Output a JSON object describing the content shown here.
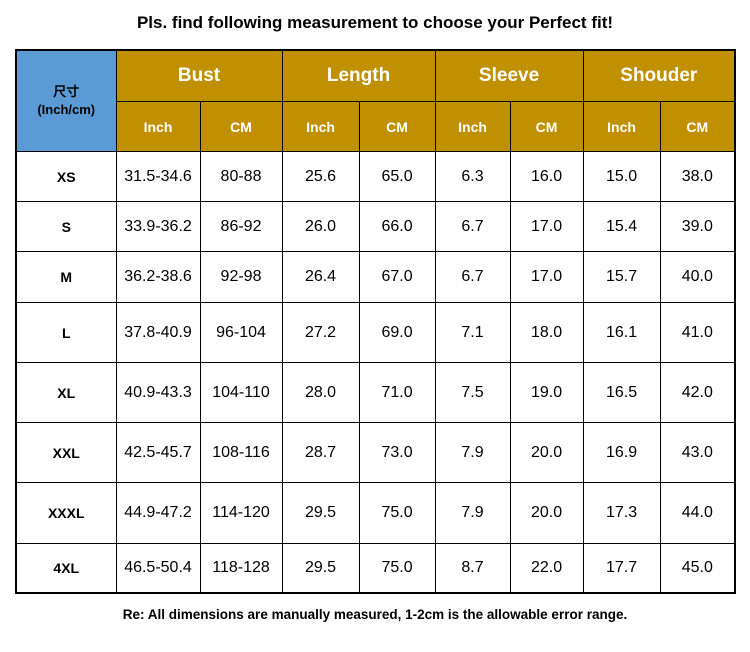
{
  "title": "Pls. find following measurement to choose your Perfect fit!",
  "table": {
    "corner_line1": "尺寸",
    "corner_line2": "(Inch/cm)",
    "groups": [
      "Bust",
      "Length",
      "Sleeve",
      "Shouder"
    ],
    "units": [
      "Inch",
      "CM",
      "Inch",
      "CM",
      "Inch",
      "CM",
      "Inch",
      "CM"
    ],
    "rows": [
      {
        "size": "XS",
        "values": [
          "31.5-34.6",
          "80-88",
          "25.6",
          "65.0",
          "6.3",
          "16.0",
          "15.0",
          "38.0"
        ]
      },
      {
        "size": "S",
        "values": [
          "33.9-36.2",
          "86-92",
          "26.0",
          "66.0",
          "6.7",
          "17.0",
          "15.4",
          "39.0"
        ]
      },
      {
        "size": "M",
        "values": [
          "36.2-38.6",
          "92-98",
          "26.4",
          "67.0",
          "6.7",
          "17.0",
          "15.7",
          "40.0"
        ]
      },
      {
        "size": "L",
        "values": [
          "37.8-40.9",
          "96-104",
          "27.2",
          "69.0",
          "7.1",
          "18.0",
          "16.1",
          "41.0"
        ]
      },
      {
        "size": "XL",
        "values": [
          "40.9-43.3",
          "104-110",
          "28.0",
          "71.0",
          "7.5",
          "19.0",
          "16.5",
          "42.0"
        ]
      },
      {
        "size": "XXL",
        "values": [
          "42.5-45.7",
          "108-116",
          "28.7",
          "73.0",
          "7.9",
          "20.0",
          "16.9",
          "43.0"
        ]
      },
      {
        "size": "XXXL",
        "values": [
          "44.9-47.2",
          "114-120",
          "29.5",
          "75.0",
          "7.9",
          "20.0",
          "17.3",
          "44.0"
        ]
      },
      {
        "size": "4XL",
        "values": [
          "46.5-50.4",
          "118-128",
          "29.5",
          "75.0",
          "8.7",
          "22.0",
          "17.7",
          "45.0"
        ]
      }
    ]
  },
  "footer": "Re: All dimensions are manually measured, 1-2cm is the allowable error range.",
  "colors": {
    "header_gold": "#c09000",
    "corner_blue": "#5b9bd5"
  }
}
